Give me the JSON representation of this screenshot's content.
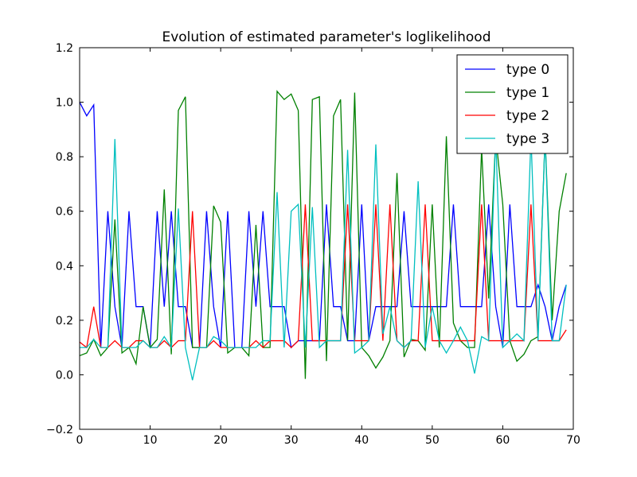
{
  "chart_data": {
    "type": "line",
    "title": "Evolution of estimated parameter's loglikelihood",
    "xlabel": "",
    "ylabel": "",
    "xlim": [
      0,
      70
    ],
    "ylim": [
      -0.2,
      1.2
    ],
    "x_ticks": [
      0,
      10,
      20,
      30,
      40,
      50,
      60,
      70
    ],
    "y_ticks": [
      -0.2,
      0.0,
      0.2,
      0.4,
      0.6,
      0.8,
      1.0,
      1.2
    ],
    "x_tick_labels": [
      "0",
      "10",
      "20",
      "30",
      "40",
      "50",
      "60",
      "70"
    ],
    "y_tick_labels": [
      "−0.2",
      "0.0",
      "0.2",
      "0.4",
      "0.6",
      "0.8",
      "1.0",
      "1.2"
    ],
    "grid": false,
    "legend_position": "top-right",
    "x": [
      0,
      1,
      2,
      3,
      4,
      5,
      6,
      7,
      8,
      9,
      10,
      11,
      12,
      13,
      14,
      15,
      16,
      17,
      18,
      19,
      20,
      21,
      22,
      23,
      24,
      25,
      26,
      27,
      28,
      29,
      30,
      31,
      32,
      33,
      34,
      35,
      36,
      37,
      38,
      39,
      40,
      41,
      42,
      43,
      44,
      45,
      46,
      47,
      48,
      49,
      50,
      51,
      52,
      53,
      54,
      55,
      56,
      57,
      58,
      59,
      60,
      61,
      62,
      63,
      64,
      65,
      66,
      67,
      68,
      69
    ],
    "series": [
      {
        "name": "type 0",
        "color": "#0000ff",
        "values": [
          1.0,
          0.95,
          0.99,
          0.1,
          0.6,
          0.25,
          0.1,
          0.6,
          0.25,
          0.25,
          0.1,
          0.6,
          0.25,
          0.6,
          0.25,
          0.25,
          0.1,
          0.1,
          0.6,
          0.25,
          0.1,
          0.6,
          0.1,
          0.1,
          0.6,
          0.25,
          0.6,
          0.25,
          0.25,
          0.25,
          0.1,
          0.125,
          0.125,
          0.125,
          0.125,
          0.625,
          0.25,
          0.25,
          0.125,
          0.125,
          0.625,
          0.125,
          0.25,
          0.25,
          0.25,
          0.25,
          0.6,
          0.25,
          0.25,
          0.25,
          0.25,
          0.25,
          0.25,
          0.625,
          0.25,
          0.25,
          0.25,
          0.25,
          0.625,
          0.25,
          0.1,
          0.625,
          0.25,
          0.25,
          0.25,
          0.33,
          0.25,
          0.125,
          0.25,
          0.33
        ]
      },
      {
        "name": "type 1",
        "color": "#008000",
        "values": [
          0.07,
          0.08,
          0.13,
          0.07,
          0.1,
          0.57,
          0.08,
          0.1,
          0.04,
          0.25,
          0.1,
          0.13,
          0.68,
          0.075,
          0.97,
          1.02,
          0.1,
          0.1,
          0.1,
          0.62,
          0.56,
          0.08,
          0.1,
          0.1,
          0.07,
          0.55,
          0.1,
          0.1,
          1.04,
          1.01,
          1.03,
          0.97,
          -0.015,
          1.01,
          1.02,
          0.05,
          0.95,
          1.01,
          0.125,
          1.035,
          0.1,
          0.07,
          0.025,
          0.065,
          0.125,
          0.74,
          0.065,
          0.13,
          0.125,
          0.09,
          0.625,
          0.1,
          0.875,
          0.19,
          0.125,
          0.1,
          0.1,
          0.83,
          0.28,
          0.875,
          0.625,
          0.125,
          0.05,
          0.075,
          0.125,
          0.14,
          0.875,
          0.2,
          0.6,
          0.74
        ]
      },
      {
        "name": "type 2",
        "color": "#ff0000",
        "values": [
          0.12,
          0.1,
          0.25,
          0.1,
          0.1,
          0.125,
          0.1,
          0.1,
          0.125,
          0.125,
          0.1,
          0.1,
          0.125,
          0.1,
          0.125,
          0.125,
          0.6,
          0.1,
          0.1,
          0.125,
          0.1,
          0.1,
          0.1,
          0.1,
          0.1,
          0.125,
          0.1,
          0.125,
          0.125,
          0.125,
          0.1,
          0.125,
          0.625,
          0.125,
          0.125,
          0.125,
          0.125,
          0.125,
          0.625,
          0.125,
          0.125,
          0.125,
          0.625,
          0.125,
          0.625,
          0.125,
          0.1,
          0.125,
          0.125,
          0.625,
          0.125,
          0.125,
          0.125,
          0.125,
          0.125,
          0.125,
          0.125,
          0.625,
          0.125,
          0.125,
          0.125,
          0.125,
          0.125,
          0.125,
          0.625,
          0.125,
          0.125,
          0.125,
          0.125,
          0.165
        ]
      },
      {
        "name": "type 3",
        "color": "#00bfbf",
        "values": [
          0.1,
          0.1,
          0.13,
          0.1,
          0.1,
          0.865,
          0.1,
          0.1,
          0.1,
          0.125,
          0.1,
          0.1,
          0.14,
          0.1,
          0.61,
          0.1,
          -0.02,
          0.1,
          0.1,
          0.14,
          0.125,
          0.1,
          0.1,
          0.1,
          0.1,
          0.1,
          0.125,
          0.125,
          0.67,
          0.1,
          0.6,
          0.625,
          0.1,
          0.615,
          0.1,
          0.125,
          0.125,
          0.125,
          0.825,
          0.08,
          0.1,
          0.125,
          0.845,
          0.15,
          0.25,
          0.125,
          0.1,
          0.125,
          0.71,
          0.1,
          0.25,
          0.125,
          0.08,
          0.125,
          0.175,
          0.125,
          0.005,
          0.14,
          0.125,
          0.875,
          0.1,
          0.125,
          0.15,
          0.125,
          0.875,
          0.125,
          0.875,
          0.125,
          0.125,
          0.33
        ]
      }
    ]
  }
}
